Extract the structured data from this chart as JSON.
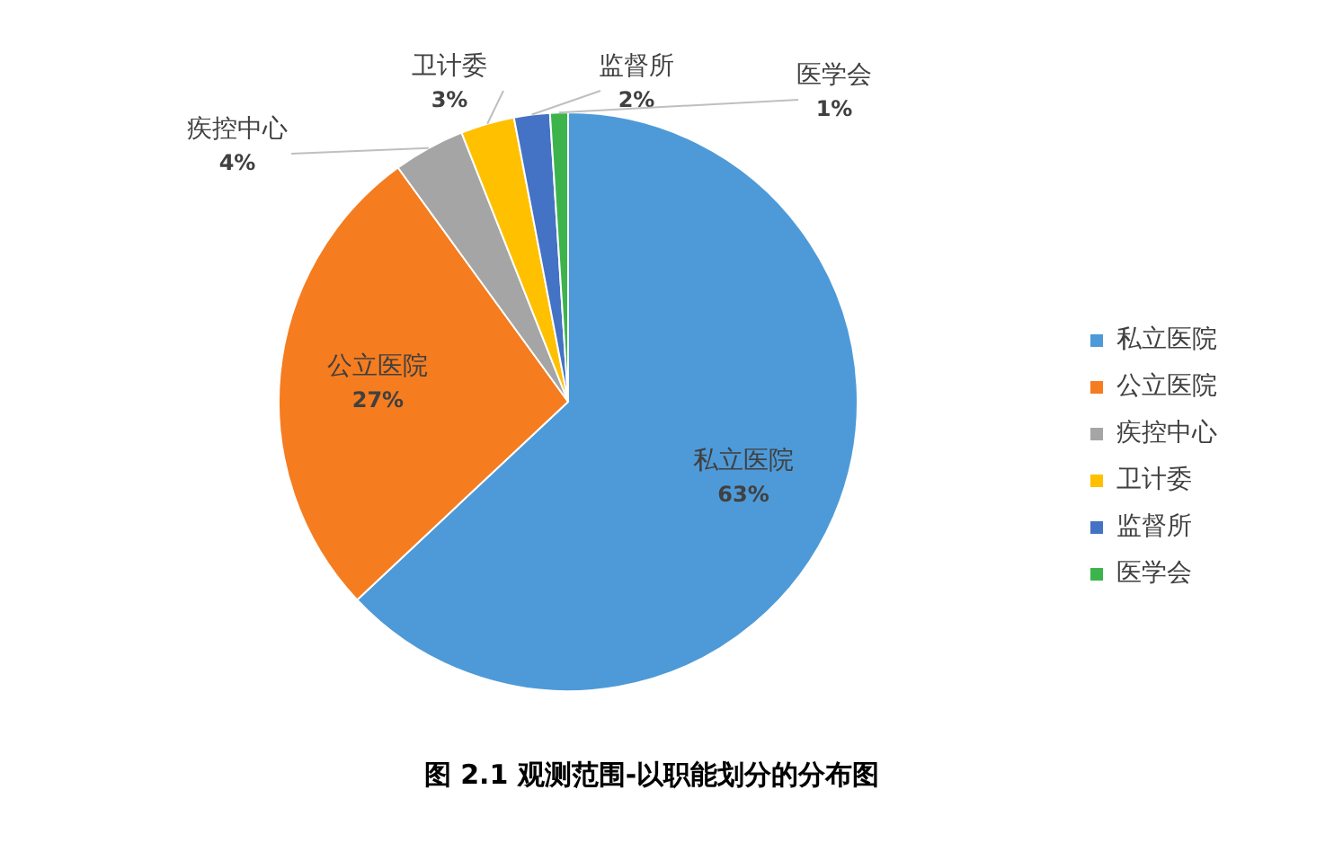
{
  "chart_data": {
    "type": "pie",
    "title": "图 2.1 观测范围-以职能划分的分布图",
    "categories": [
      "私立医院",
      "公立医院",
      "疾控中心",
      "卫计委",
      "监督所",
      "医学会"
    ],
    "values": [
      63,
      27,
      4,
      3,
      2,
      1
    ],
    "colors": [
      "#4e9ad8",
      "#f57c1f",
      "#a5a5a5",
      "#ffc000",
      "#4472c4",
      "#3cb44b"
    ],
    "value_labels": [
      "63%",
      "27%",
      "4%",
      "3%",
      "2%",
      "1%"
    ],
    "legend": "right"
  }
}
